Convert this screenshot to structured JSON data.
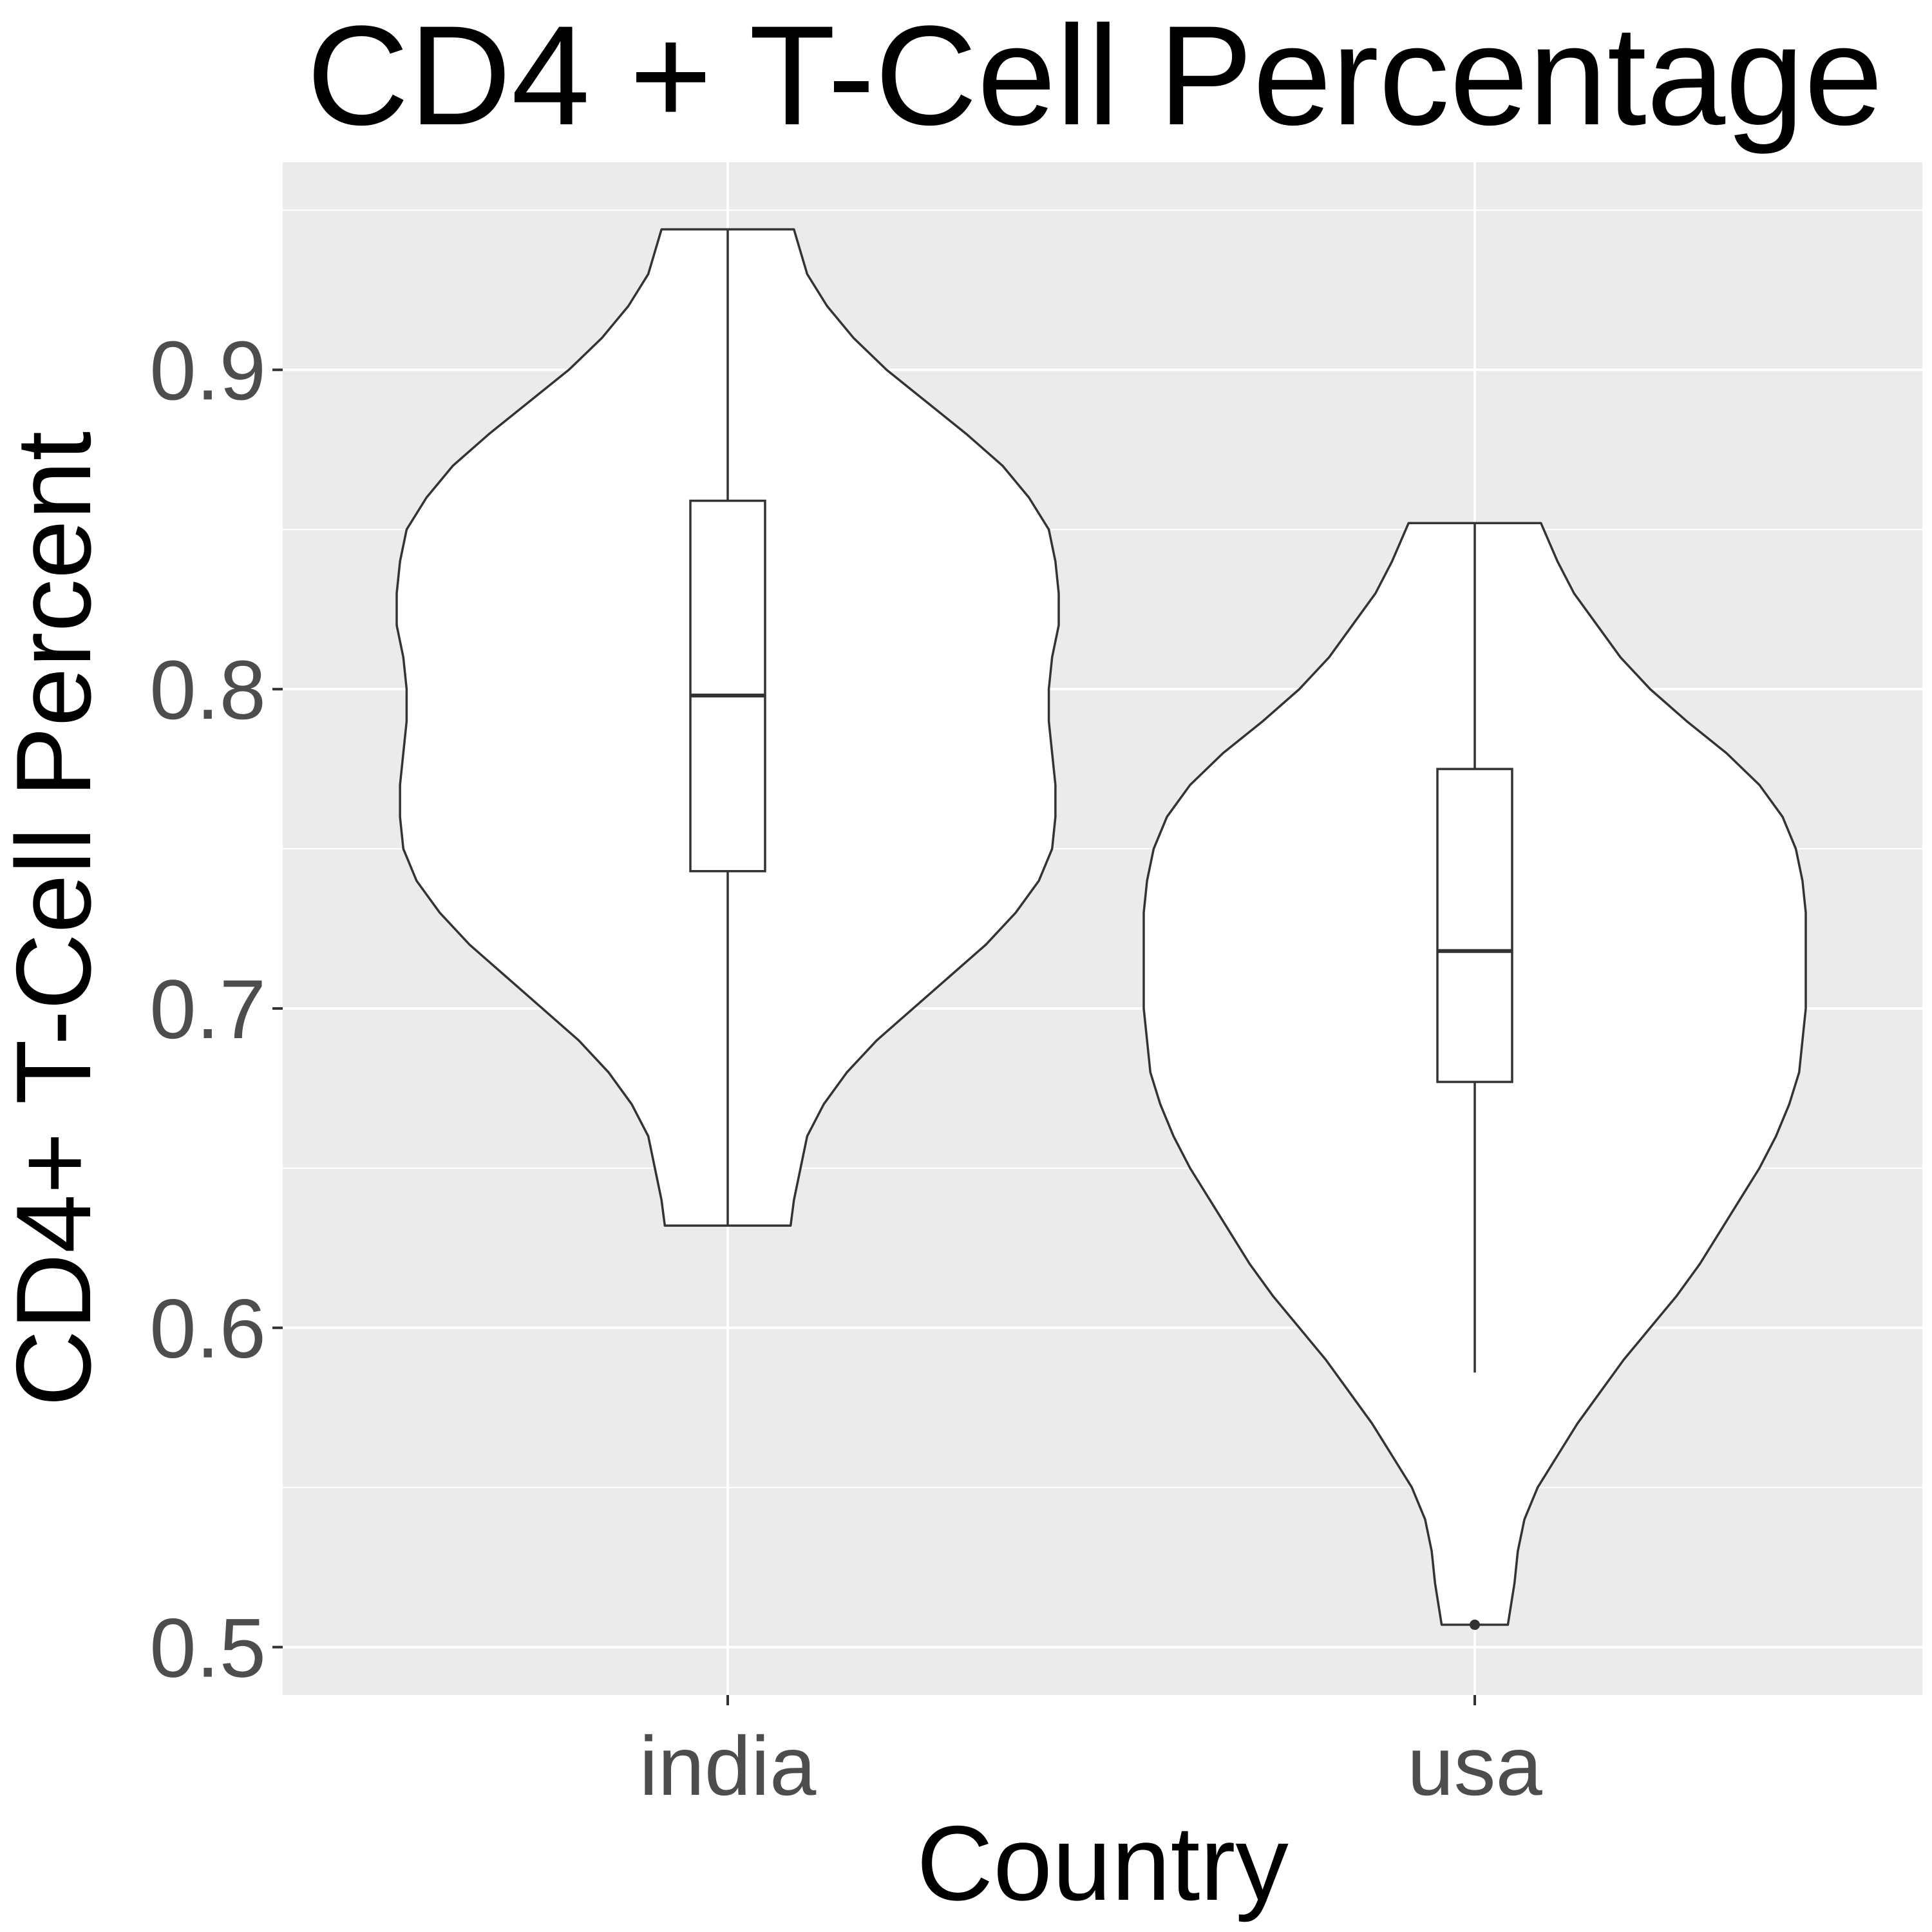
{
  "chart_data": {
    "type": "violin",
    "title": "CD4 + T-Cell Percentage",
    "xlabel": "Country",
    "ylabel": "CD4+ T-Cell Percent",
    "categories": [
      "india",
      "usa"
    ],
    "ylim": [
      0.485,
      0.965
    ],
    "yticks": [
      0.5,
      0.6,
      0.7,
      0.8,
      0.9
    ],
    "ytick_labels": [
      "0.5",
      "0.6",
      "0.7",
      "0.8",
      "0.9"
    ],
    "grid": true,
    "panel_background": "#ebebeb",
    "violin_fill": "#ffffff",
    "line_color": "#333333",
    "series": [
      {
        "category": "india",
        "min": 0.632,
        "max": 0.944,
        "box": {
          "q1": 0.743,
          "median": 0.798,
          "q3": 0.859,
          "whisker_low": 0.632,
          "whisker_high": 0.944
        },
        "outliers": [],
        "density_profile": [
          [
            0.632,
            0.19
          ],
          [
            0.64,
            0.2
          ],
          [
            0.65,
            0.22
          ],
          [
            0.66,
            0.24
          ],
          [
            0.67,
            0.29
          ],
          [
            0.68,
            0.36
          ],
          [
            0.69,
            0.45
          ],
          [
            0.7,
            0.56
          ],
          [
            0.71,
            0.67
          ],
          [
            0.72,
            0.78
          ],
          [
            0.73,
            0.87
          ],
          [
            0.74,
            0.94
          ],
          [
            0.75,
            0.98
          ],
          [
            0.76,
            0.99
          ],
          [
            0.77,
            0.99
          ],
          [
            0.78,
            0.98
          ],
          [
            0.79,
            0.97
          ],
          [
            0.8,
            0.97
          ],
          [
            0.81,
            0.98
          ],
          [
            0.82,
            1.0
          ],
          [
            0.83,
            1.0
          ],
          [
            0.84,
            0.99
          ],
          [
            0.85,
            0.97
          ],
          [
            0.86,
            0.91
          ],
          [
            0.87,
            0.83
          ],
          [
            0.88,
            0.72
          ],
          [
            0.89,
            0.6
          ],
          [
            0.9,
            0.48
          ],
          [
            0.91,
            0.38
          ],
          [
            0.92,
            0.3
          ],
          [
            0.93,
            0.24
          ],
          [
            0.944,
            0.2
          ]
        ]
      },
      {
        "category": "usa",
        "min": 0.507,
        "max": 0.852,
        "box": {
          "q1": 0.677,
          "median": 0.718,
          "q3": 0.775,
          "whisker_low": 0.586,
          "whisker_high": 0.852
        },
        "outliers": [
          0.507
        ],
        "density_profile": [
          [
            0.507,
            0.1
          ],
          [
            0.52,
            0.12
          ],
          [
            0.53,
            0.13
          ],
          [
            0.54,
            0.15
          ],
          [
            0.55,
            0.19
          ],
          [
            0.56,
            0.25
          ],
          [
            0.57,
            0.31
          ],
          [
            0.58,
            0.38
          ],
          [
            0.59,
            0.45
          ],
          [
            0.6,
            0.53
          ],
          [
            0.61,
            0.61
          ],
          [
            0.62,
            0.68
          ],
          [
            0.63,
            0.74
          ],
          [
            0.64,
            0.8
          ],
          [
            0.65,
            0.86
          ],
          [
            0.66,
            0.91
          ],
          [
            0.67,
            0.95
          ],
          [
            0.68,
            0.98
          ],
          [
            0.69,
            0.99
          ],
          [
            0.7,
            1.0
          ],
          [
            0.71,
            1.0
          ],
          [
            0.72,
            1.0
          ],
          [
            0.73,
            1.0
          ],
          [
            0.74,
            0.99
          ],
          [
            0.75,
            0.97
          ],
          [
            0.76,
            0.93
          ],
          [
            0.77,
            0.86
          ],
          [
            0.78,
            0.76
          ],
          [
            0.79,
            0.64
          ],
          [
            0.8,
            0.53
          ],
          [
            0.81,
            0.44
          ],
          [
            0.82,
            0.37
          ],
          [
            0.83,
            0.3
          ],
          [
            0.84,
            0.25
          ],
          [
            0.852,
            0.2
          ]
        ]
      }
    ]
  }
}
